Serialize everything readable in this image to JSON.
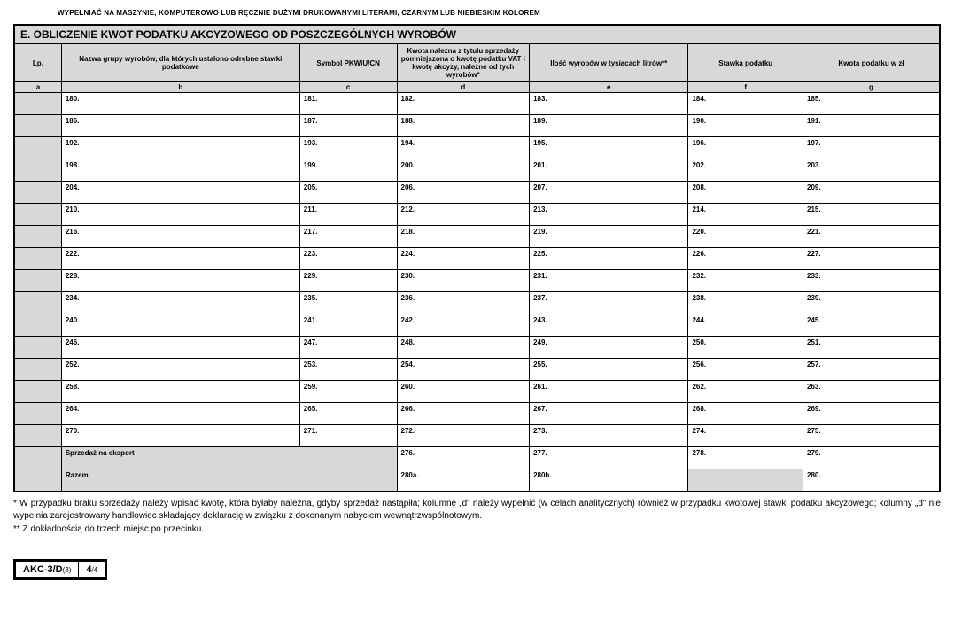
{
  "top_instruction": "WYPEŁNIAĆ NA MASZYNIE, KOMPUTEROWO LUB RĘCZNIE DUŻYMI DRUKOWANYMI LITERAMI, CZARNYM LUB NIEBIESKIM KOLOREM",
  "section_title": "E. OBLICZENIE KWOT PODATKU AKCYZOWEGO OD POSZCZEGÓLNYCH WYROBÓW",
  "headers": {
    "lp": "Lp.",
    "nazwa": "Nazwa grupy wyrobów, dla których ustalono odrębne stawki podatkowe",
    "symbol": "Symbol PKWiU/CN",
    "kwota_nalezna": "Kwota należna z tytułu sprzedaży pomniejszona o kwotę podatku VAT i kwotę akcyzy, należne od tych wyrobów*",
    "ilosc": "Ilość wyrobów w tysiącach litrów**",
    "stawka": "Stawka podatku",
    "kwota_podatku": "Kwota podatku w zł"
  },
  "letters": {
    "a": "a",
    "b": "b",
    "c": "c",
    "d": "d",
    "e": "e",
    "f": "f",
    "g": "g"
  },
  "rows": [
    {
      "b": "180.",
      "c": "181.",
      "d": "182.",
      "e": "183.",
      "f": "184.",
      "g": "185."
    },
    {
      "b": "186.",
      "c": "187.",
      "d": "188.",
      "e": "189.",
      "f": "190.",
      "g": "191."
    },
    {
      "b": "192.",
      "c": "193.",
      "d": "194.",
      "e": "195.",
      "f": "196.",
      "g": "197."
    },
    {
      "b": "198.",
      "c": "199.",
      "d": "200.",
      "e": "201.",
      "f": "202.",
      "g": "203."
    },
    {
      "b": "204.",
      "c": "205.",
      "d": "206.",
      "e": "207.",
      "f": "208.",
      "g": "209."
    },
    {
      "b": "210.",
      "c": "211.",
      "d": "212.",
      "e": "213.",
      "f": "214.",
      "g": "215."
    },
    {
      "b": "216.",
      "c": "217.",
      "d": "218.",
      "e": "219.",
      "f": "220.",
      "g": "221."
    },
    {
      "b": "222.",
      "c": "223.",
      "d": "224.",
      "e": "225.",
      "f": "226.",
      "g": "227."
    },
    {
      "b": "228.",
      "c": "229.",
      "d": "230.",
      "e": "231.",
      "f": "232.",
      "g": "233."
    },
    {
      "b": "234.",
      "c": "235.",
      "d": "236.",
      "e": "237.",
      "f": "238.",
      "g": "239."
    },
    {
      "b": "240.",
      "c": "241.",
      "d": "242.",
      "e": "243.",
      "f": "244.",
      "g": "245."
    },
    {
      "b": "246.",
      "c": "247.",
      "d": "248.",
      "e": "249.",
      "f": "250.",
      "g": "251."
    },
    {
      "b": "252.",
      "c": "253.",
      "d": "254.",
      "e": "255.",
      "f": "256.",
      "g": "257."
    },
    {
      "b": "258.",
      "c": "259.",
      "d": "260.",
      "e": "261.",
      "f": "262.",
      "g": "263."
    },
    {
      "b": "264.",
      "c": "265.",
      "d": "266.",
      "e": "267.",
      "f": "268.",
      "g": "269."
    },
    {
      "b": "270.",
      "c": "271.",
      "d": "272.",
      "e": "273.",
      "f": "274.",
      "g": "275."
    }
  ],
  "export_row": {
    "label": "Sprzedaż na eksport",
    "d": "276.",
    "e": "277.",
    "f": "278.",
    "g": "279."
  },
  "razem_row": {
    "label": "Razem",
    "d": "280a.",
    "e": "280b.",
    "g": "280."
  },
  "footnote1": "* W przypadku braku sprzedaży należy wpisać kwotę, która byłaby należna, gdyby sprzedaż nastąpiła; kolumnę „d\" należy wypełnić (w celach analitycznych) również w przypadku kwotowej stawki podatku akcyzowego; kolumny „d\" nie wypełnia zarejestrowany handlowiec składający deklarację w związku z dokonanym nabyciem wewnątrzwspólnotowym.",
  "footnote2": "** Z dokładnością do trzech miejsc po przecinku.",
  "footer_code": "AKC-3/D",
  "footer_code_sub": "(3)",
  "footer_page": "4",
  "footer_page_total": "/4",
  "col_widths": {
    "a": "50px",
    "b": "270px",
    "c": "110px",
    "d": "150px",
    "e": "180px",
    "f": "130px",
    "g": "155px"
  }
}
